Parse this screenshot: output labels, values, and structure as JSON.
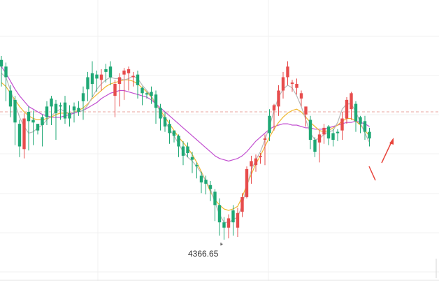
{
  "chart_data": {
    "type": "candlestick",
    "title": "",
    "xlabel": "",
    "ylabel": "",
    "ylim": [
      4340,
      4550
    ],
    "grid": true,
    "colors": {
      "up": "#e74c4c",
      "down": "#1fa875",
      "ma_short": "#b8b8b8",
      "ma_mid": "#f0b731",
      "ma_long": "#c24fd0",
      "reference": "#e8a39c",
      "forecast_arrow": "#e8453c"
    },
    "reference_line": 4466,
    "low_annotation": {
      "text": "4366.65",
      "value": 4366.65
    },
    "candles": [
      [
        4505,
        4500,
        4485,
        4508
      ],
      [
        4500,
        4492,
        4474,
        4503
      ],
      [
        4482,
        4470,
        4462,
        4486
      ],
      [
        4475,
        4458,
        4441,
        4478
      ],
      [
        4457,
        4440,
        4432,
        4460
      ],
      [
        4438,
        4461,
        4431,
        4465
      ],
      [
        4466,
        4459,
        4437,
        4470
      ],
      [
        4460,
        4458,
        4441,
        4467
      ],
      [
        4457,
        4452,
        4449,
        4456
      ],
      [
        4462,
        4456,
        4440,
        4464
      ],
      [
        4470,
        4462,
        4456,
        4474
      ],
      [
        4476,
        4470,
        4456,
        4478
      ],
      [
        4472,
        4465,
        4445,
        4475
      ],
      [
        4471,
        4470,
        4460,
        4473
      ],
      [
        4473,
        4461,
        4457,
        4478
      ],
      [
        4465,
        4461,
        4455,
        4471
      ],
      [
        4470,
        4467,
        4458,
        4473
      ],
      [
        4469,
        4466,
        4463,
        4474
      ],
      [
        4480,
        4474,
        4460,
        4485
      ],
      [
        4492,
        4483,
        4474,
        4496
      ],
      [
        4495,
        4487,
        4477,
        4504
      ],
      [
        4494,
        4491,
        4481,
        4497
      ],
      [
        4490,
        4494,
        4482,
        4498
      ],
      [
        4498,
        4496,
        4488,
        4502
      ],
      [
        4500,
        4492,
        4486,
        4504
      ],
      [
        4478,
        4487,
        4462,
        4490
      ],
      [
        4487,
        4492,
        4470,
        4495
      ],
      [
        4494,
        4497,
        4475,
        4499
      ],
      [
        4495,
        4498,
        4482,
        4500
      ],
      [
        4492,
        4493,
        4485,
        4496
      ],
      [
        4494,
        4486,
        4476,
        4497
      ],
      [
        4484,
        4480,
        4471,
        4485
      ],
      [
        4480,
        4479,
        4476,
        4481
      ],
      [
        4481,
        4478,
        4472,
        4485
      ],
      [
        4479,
        4469,
        4457,
        4482
      ],
      [
        4469,
        4461,
        4452,
        4472
      ],
      [
        4462,
        4455,
        4451,
        4466
      ],
      [
        4457,
        4450,
        4442,
        4460
      ],
      [
        4452,
        4448,
        4443,
        4451
      ],
      [
        4448,
        4440,
        4432,
        4449
      ],
      [
        4440,
        4433,
        4426,
        4444
      ],
      [
        4440,
        4435,
        4432,
        4443
      ],
      [
        4432,
        4430,
        4420,
        4436
      ],
      [
        4426,
        4425,
        4416,
        4428
      ],
      [
        4418,
        4413,
        4405,
        4421
      ],
      [
        4415,
        4412,
        4404,
        4418
      ],
      [
        4411,
        4408,
        4399,
        4414
      ],
      [
        4406,
        4396,
        4384,
        4408
      ],
      [
        4396,
        4383,
        4373,
        4401
      ],
      [
        4383,
        4379,
        4370,
        4387
      ],
      [
        4379,
        4386,
        4371,
        4389
      ],
      [
        4392,
        4383,
        4373,
        4396
      ],
      [
        4379,
        4390,
        4372,
        4394
      ],
      [
        4391,
        4402,
        4387,
        4405
      ],
      [
        4402,
        4423,
        4401,
        4425
      ],
      [
        4425,
        4429,
        4412,
        4433
      ],
      [
        4426,
        4431,
        4421,
        4434
      ],
      [
        4432,
        4433,
        4427,
        4435
      ],
      [
        4445,
        4446,
        4426,
        4449
      ],
      [
        4463,
        4450,
        4444,
        4468
      ],
      [
        4467,
        4471,
        4452,
        4472
      ],
      [
        4470,
        4482,
        4463,
        4486
      ],
      [
        4482,
        4492,
        4476,
        4496
      ],
      [
        4492,
        4500,
        4486,
        4504
      ],
      [
        4487,
        4488,
        4481,
        4490
      ],
      [
        4484,
        4487,
        4479,
        4491
      ],
      [
        4476,
        4480,
        4470,
        4482
      ],
      [
        4464,
        4470,
        4455,
        4468
      ],
      [
        4460,
        4445,
        4438,
        4463
      ],
      [
        4445,
        4436,
        4432,
        4447
      ],
      [
        4443,
        4449,
        4428,
        4452
      ],
      [
        4449,
        4454,
        4442,
        4457
      ],
      [
        4455,
        4446,
        4441,
        4456
      ],
      [
        4450,
        4445,
        4440,
        4453
      ],
      [
        4451,
        4450,
        4444,
        4453
      ],
      [
        4452,
        4461,
        4445,
        4466
      ],
      [
        4461,
        4475,
        4457,
        4477
      ],
      [
        4468,
        4480,
        4460,
        4481
      ],
      [
        4472,
        4459,
        4451,
        4474
      ],
      [
        4462,
        4457,
        4450,
        4463
      ],
      [
        4459,
        4451,
        4445,
        4463
      ],
      [
        4451,
        4446,
        4440,
        4454
      ]
    ],
    "ma_short": [
      4495,
      4492,
      4482,
      4472,
      4462,
      4455,
      4450,
      4451,
      4454,
      4456,
      4460,
      4463,
      4466,
      4468,
      4466,
      4465,
      4466,
      4466,
      4467,
      4471,
      4477,
      4483,
      4487,
      4490,
      4492,
      4491,
      4491,
      4490,
      4491,
      4493,
      4491,
      4486,
      4482,
      4478,
      4472,
      4466,
      4459,
      4453,
      4448,
      4442,
      4436,
      4432,
      4429,
      4425,
      4420,
      4414,
      4408,
      4398,
      4389,
      4383,
      4383,
      4385,
      4387,
      4396,
      4410,
      4422,
      4430,
      4436,
      4445,
      4455,
      4467,
      4477,
      4483,
      4486,
      4484,
      4478,
      4470,
      4460,
      4450,
      4445,
      4446,
      4449,
      4451,
      4452,
      4458,
      4468,
      4472,
      4472,
      4466,
      4458,
      4450,
      4443
    ],
    "ma_mid": [
      4488,
      4485,
      4480,
      4475,
      4470,
      4466,
      4463,
      4461,
      4460,
      4460,
      4461,
      4462,
      4464,
      4465,
      4465,
      4465,
      4466,
      4467,
      4469,
      4472,
      4476,
      4479,
      4482,
      4485,
      4487,
      4488,
      4489,
      4490,
      4490,
      4489,
      4487,
      4484,
      4481,
      4477,
      4472,
      4467,
      4462,
      4457,
      4452,
      4447,
      4443,
      4439,
      4434,
      4428,
      4421,
      4414,
      4406,
      4400,
      4396,
      4393,
      4392,
      4393,
      4395,
      4402,
      4411,
      4419,
      4427,
      4433,
      4440,
      4447,
      4453,
      4458,
      4462,
      4465,
      4467,
      4468,
      4466,
      4462,
      4458,
      4455,
      4452,
      4451,
      4452,
      4454,
      4456,
      4459,
      4461,
      4461,
      4459,
      4456,
      4452,
      4448
    ],
    "ma_long": [
      4500,
      4495,
      4489,
      4483,
      4478,
      4474,
      4470,
      4468,
      4466,
      4464,
      4463,
      4462,
      4462,
      4462,
      4463,
      4464,
      4465,
      4466,
      4467,
      4469,
      4471,
      4473,
      4476,
      4478,
      4480,
      4481,
      4482,
      4482,
      4481,
      4480,
      4479,
      4478,
      4477,
      4475,
      4472,
      4469,
      4466,
      4463,
      4460,
      4457,
      4454,
      4451,
      4448,
      4445,
      4442,
      4439,
      4436,
      4433,
      4431,
      4430,
      4429,
      4430,
      4431,
      4433,
      4436,
      4440,
      4444,
      4447,
      4450,
      4453,
      4455,
      4456,
      4457,
      4457,
      4456,
      4456,
      4455,
      4454,
      4454,
      4453,
      4453,
      4453,
      4454,
      4455,
      4456,
      4457,
      4458,
      4458,
      4459,
      4458,
      4457,
      4455
    ]
  }
}
